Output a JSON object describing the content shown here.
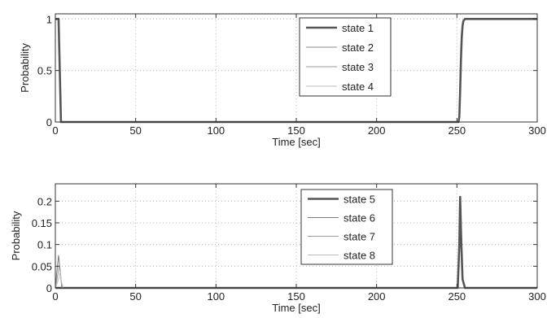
{
  "chart_data": [
    {
      "type": "line",
      "title": "",
      "xlabel": "Time [sec]",
      "ylabel": "Probability",
      "xlim": [
        0,
        300
      ],
      "ylim": [
        0,
        1.05
      ],
      "xticks": [
        0,
        50,
        100,
        150,
        200,
        250,
        300
      ],
      "xtick_labels": [
        "0",
        "50",
        "100",
        "150",
        "200",
        "250",
        "300"
      ],
      "yticks": [
        0,
        0.5,
        1
      ],
      "ytick_labels": [
        "0",
        "0.5",
        "1"
      ],
      "grid": true,
      "legend_position": "top-right",
      "series": [
        {
          "name": "state 1",
          "color": "#555555",
          "width": 2.6,
          "points": [
            [
              0,
              1
            ],
            [
              2,
              1
            ],
            [
              3.5,
              0
            ],
            [
              251,
              0
            ],
            [
              251.5,
              0.05
            ],
            [
              252,
              0.3
            ],
            [
              252.5,
              0.6
            ],
            [
              253,
              0.82
            ],
            [
              253.5,
              0.93
            ],
            [
              254,
              0.98
            ],
            [
              255,
              1
            ],
            [
              300,
              1
            ]
          ]
        },
        {
          "name": "state 2",
          "color": "#888888",
          "width": 1.0,
          "points": [
            [
              0,
              0
            ],
            [
              300,
              0
            ]
          ]
        },
        {
          "name": "state 3",
          "color": "#999999",
          "width": 1.0,
          "points": [
            [
              0,
              0
            ],
            [
              300,
              0
            ]
          ]
        },
        {
          "name": "state 4",
          "color": "#bbbbbb",
          "width": 1.0,
          "points": [
            [
              0,
              0
            ],
            [
              300,
              0
            ]
          ]
        }
      ]
    },
    {
      "type": "line",
      "title": "",
      "xlabel": "Time [sec]",
      "ylabel": "Probability",
      "xlim": [
        0,
        300
      ],
      "ylim": [
        0,
        0.24
      ],
      "xticks": [
        0,
        50,
        100,
        150,
        200,
        250,
        300
      ],
      "xtick_labels": [
        "0",
        "50",
        "100",
        "150",
        "200",
        "250",
        "300"
      ],
      "yticks": [
        0,
        0.05,
        0.1,
        0.15,
        0.2
      ],
      "ytick_labels": [
        "0",
        "0.05",
        "0.1",
        "0.15",
        "0.2"
      ],
      "grid": true,
      "legend_position": "top-right",
      "series": [
        {
          "name": "state 5",
          "color": "#555555",
          "width": 2.6,
          "points": [
            [
              0,
              0
            ],
            [
              250.5,
              0
            ],
            [
              251.5,
              0.1
            ],
            [
              252,
              0.21
            ],
            [
              252.6,
              0.12
            ],
            [
              253.5,
              0.02
            ],
            [
              255,
              0
            ],
            [
              300,
              0
            ]
          ]
        },
        {
          "name": "state 6",
          "color": "#777777",
          "width": 1.0,
          "points": [
            [
              0,
              0
            ],
            [
              1,
              0.04
            ],
            [
              2,
              0.075
            ],
            [
              3,
              0.04
            ],
            [
              4,
              0
            ],
            [
              300,
              0
            ]
          ]
        },
        {
          "name": "state 7",
          "color": "#999999",
          "width": 1.0,
          "points": [
            [
              0,
              0
            ],
            [
              1.5,
              0.03
            ],
            [
              2.5,
              0.055
            ],
            [
              3.5,
              0.02
            ],
            [
              4.5,
              0
            ],
            [
              300,
              0
            ]
          ]
        },
        {
          "name": "state 8",
          "color": "#bbbbbb",
          "width": 1.0,
          "points": [
            [
              0,
              0
            ],
            [
              2,
              0.02
            ],
            [
              3,
              0.035
            ],
            [
              4,
              0.01
            ],
            [
              5,
              0
            ],
            [
              300,
              0
            ]
          ]
        }
      ]
    }
  ]
}
